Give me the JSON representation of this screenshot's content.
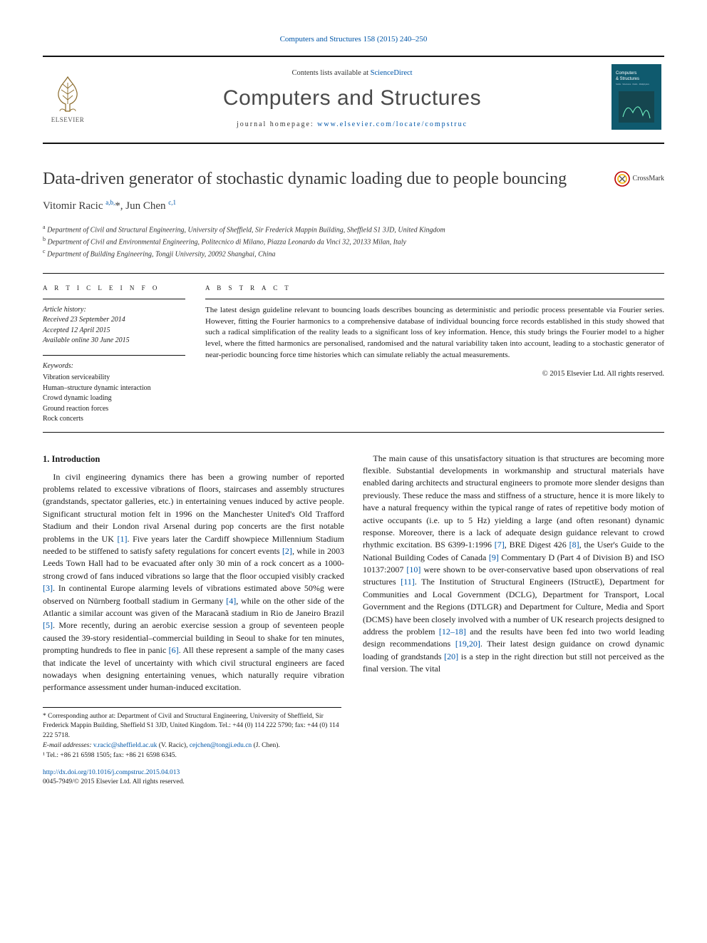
{
  "citation_line": "Computers and Structures 158 (2015) 240–250",
  "masthead": {
    "contents_prefix": "Contents lists available at ",
    "contents_link": "ScienceDirect",
    "journal": "Computers and Structures",
    "homepage_prefix": "journal homepage: ",
    "homepage_url": "www.elsevier.com/locate/compstruc",
    "publisher_label": "ELSEVIER",
    "cover": {
      "bg": "#0f5a6e",
      "title_line1": "Computers",
      "title_line2": "& Structures",
      "subtitle": "Solids • Structures • Fluids • Multiphysics"
    }
  },
  "title": "Data-driven generator of stochastic dynamic loading due to people bouncing",
  "crossmark_label": "CrossMark",
  "authors_html": "Vitomir Racic <sup>a,b,</sup>*, Jun Chen <sup>c,1</sup>",
  "affiliations": [
    {
      "sup": "a",
      "text": "Department of Civil and Structural Engineering, University of Sheffield, Sir Frederick Mappin Building, Sheffield S1 3JD, United Kingdom"
    },
    {
      "sup": "b",
      "text": "Department of Civil and Environmental Engineering, Politecnico di Milano, Piazza Leonardo da Vinci 32, 20133 Milan, Italy"
    },
    {
      "sup": "c",
      "text": "Department of Building Engineering, Tongji University, 20092 Shanghai, China"
    }
  ],
  "info": {
    "heading": "A R T I C L E   I N F O",
    "history_label": "Article history:",
    "received": "Received 23 September 2014",
    "accepted": "Accepted 12 April 2015",
    "online": "Available online 30 June 2015",
    "keywords_label": "Keywords:",
    "keywords": [
      "Vibration serviceability",
      "Human–structure dynamic interaction",
      "Crowd dynamic loading",
      "Ground reaction forces",
      "Rock concerts"
    ]
  },
  "abstract": {
    "heading": "A B S T R A C T",
    "text": "The latest design guideline relevant to bouncing loads describes bouncing as deterministic and periodic process presentable via Fourier series. However, fitting the Fourier harmonics to a comprehensive database of individual bouncing force records established in this study showed that such a radical simplification of the reality leads to a significant loss of key information. Hence, this study brings the Fourier model to a higher level, where the fitted harmonics are personalised, randomised and the natural variability taken into account, leading to a stochastic generator of near-periodic bouncing force time histories which can simulate reliably the actual measurements.",
    "copyright": "© 2015 Elsevier Ltd. All rights reserved."
  },
  "section1": {
    "heading": "1. Introduction",
    "para1": "In civil engineering dynamics there has been a growing number of reported problems related to excessive vibrations of floors, staircases and assembly structures (grandstands, spectator galleries, etc.) in entertaining venues induced by active people. Significant structural motion felt in 1996 on the Manchester United's Old Trafford Stadium and their London rival Arsenal during pop concerts are the first notable problems in the UK [1]. Five years later the Cardiff showpiece Millennium Stadium needed to be stiffened to satisfy safety regulations for concert events [2], while in 2003 Leeds Town Hall had to be evacuated after only 30 min of a rock concert as a 1000-strong crowd of fans induced vibrations so large that the floor occupied visibly cracked [3]. In continental Europe alarming levels of vibrations estimated above 50%g were observed on Nürnberg football stadium in Germany [4], while on the other side of the Atlantic a similar account was given of the Maracanã stadium in Rio de Janeiro Brazil [5]. More recently, during an aerobic exercise session a group of seventeen people caused the 39-story residential–commercial building in Seoul to shake for ten minutes, prompting hundreds to flee in panic [6]. All these represent a sample of the many cases that indicate the level of uncertainty with which civil structural engineers are faced nowadays when designing entertaining venues, which naturally require vibration performance assessment under human-induced excitation.",
    "para2": "The main cause of this unsatisfactory situation is that structures are becoming more flexible. Substantial developments in workmanship and structural materials have enabled daring architects and structural engineers to promote more slender designs than previously. These reduce the mass and stiffness of a structure, hence it is more likely to have a natural frequency within the typical range of rates of repetitive body motion of active occupants (i.e. up to 5 Hz) yielding a large (and often resonant) dynamic response. Moreover, there is a lack of adequate design guidance relevant to crowd rhythmic excitation. BS 6399-1:1996 [7], BRE Digest 426 [8], the User's Guide to the National Building Codes of Canada [9] Commentary D (Part 4 of Division B) and ISO 10137:2007 [10] were shown to be over-conservative based upon observations of real structures [11]. The Institution of Structural Engineers (IStructE), Department for Communities and Local Government (DCLG), Department for Transport, Local Government and the Regions (DTLGR) and Department for Culture, Media and Sport (DCMS) have been closely involved with a number of UK research projects designed to address the problem [12–18] and the results have been fed into two world leading design recommendations [19,20]. Their latest design guidance on crowd dynamic loading of grandstands [20] is a step in the right direction but still not perceived as the final version. The vital"
  },
  "footnotes": {
    "corresponding": "* Corresponding author at: Department of Civil and Structural Engineering, University of Sheffield, Sir Frederick Mappin Building, Sheffield S1 3JD, United Kingdom. Tel.: +44 (0) 114 222 5790; fax: +44 (0) 114 222 5718.",
    "emails_label": "E-mail addresses:",
    "email1": "v.racic@sheffield.ac.uk",
    "email1_who": "(V. Racic),",
    "email2": "cejchen@tongji.edu.cn",
    "email2_who": "(J. Chen).",
    "note1": "¹ Tel.: +86 21 6598 1505; fax: +86 21 6598 6345."
  },
  "doi": {
    "url": "http://dx.doi.org/10.1016/j.compstruc.2015.04.013",
    "issn_line": "0045-7949/© 2015 Elsevier Ltd. All rights reserved."
  },
  "colors": {
    "link": "#0056a8",
    "rule": "#111111",
    "text": "#1a1a1a",
    "title_grey": "#3a3a3a"
  }
}
